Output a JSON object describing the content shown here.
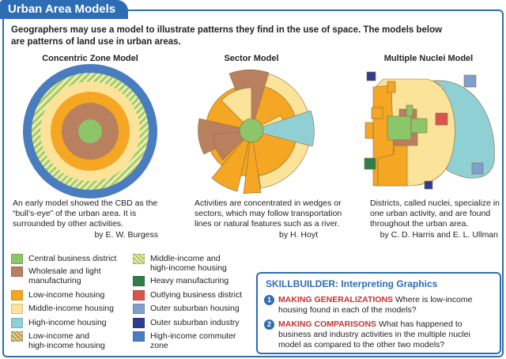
{
  "header": {
    "title": "Urban Area Models"
  },
  "intro": "Geographers may use a model to illustrate patterns they find in the use of space. The models below are patterns of land use in urban areas.",
  "models": [
    {
      "title": "Concentric Zone Model",
      "caption": "An early model showed the CBD as the “bull’s-eye” of the urban area. It is surrounded by other activities.",
      "author": "by E. W. Burgess"
    },
    {
      "title": "Sector Model",
      "caption": "Activities are concentrated in wedges or sectors, which may follow transportation lines or natural features such as a river.",
      "author": "by H. Hoyt"
    },
    {
      "title": "Multiple Nuclei Model",
      "caption": "Districts, called nuclei, specialize in one urban activity, and are found throughout the urban area.",
      "author": "by C. D. Harris and E. L. Ullman"
    }
  ],
  "legend": [
    "Central business district",
    "Wholesale and light manufacturing",
    "Low-income housing",
    "Middle-income housing",
    "High-income housing",
    "Low-income and high-income housing",
    "Middle-income and high-income housing",
    "Heavy manufacturing",
    "Outlying business district",
    "Outer suburban housing",
    "Outer suburban industry",
    "High-income commuter zone"
  ],
  "skillbuilder": {
    "title": "SKILLBUILDER: Interpreting Graphics",
    "items": [
      {
        "number": "1",
        "heading": "MAKING GENERALIZATIONS",
        "text": "Where is low-income housing found in each of the models?"
      },
      {
        "number": "2",
        "heading": "MAKING COMPARISONS",
        "text": "What has happened to business and industry activities in the multiple nuclei model as compared to the other two models?"
      }
    ]
  }
}
